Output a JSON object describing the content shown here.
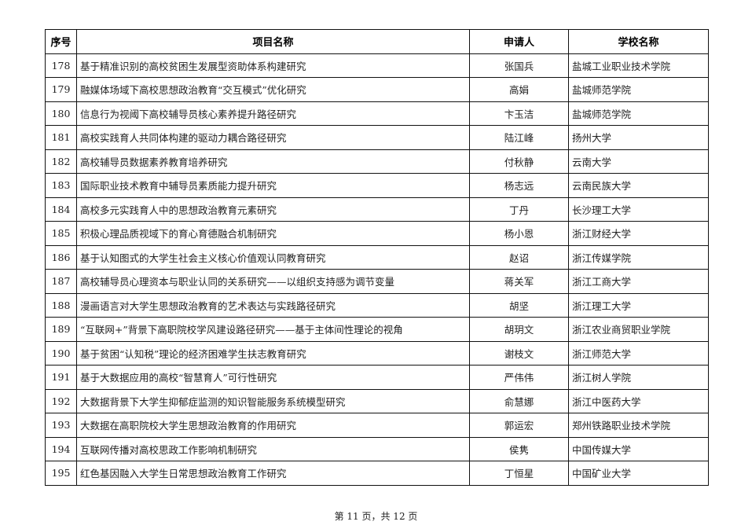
{
  "table": {
    "headers": [
      "序号",
      "项目名称",
      "申请人",
      "学校名称"
    ],
    "rows": [
      [
        "178",
        "基于精准识别的高校贫困生发展型资助体系构建研究",
        "张国兵",
        "盐城工业职业技术学院"
      ],
      [
        "179",
        "融媒体场域下高校思想政治教育“交互模式”优化研究",
        "高娟",
        "盐城师范学院"
      ],
      [
        "180",
        "信息行为视阈下高校辅导员核心素养提升路径研究",
        "卞玉洁",
        "盐城师范学院"
      ],
      [
        "181",
        "高校实践育人共同体构建的驱动力耦合路径研究",
        "陆江峰",
        "扬州大学"
      ],
      [
        "182",
        "高校辅导员数据素养教育培养研究",
        "付秋静",
        "云南大学"
      ],
      [
        "183",
        "国际职业技术教育中辅导员素质能力提升研究",
        "杨志远",
        "云南民族大学"
      ],
      [
        "184",
        "高校多元实践育人中的思想政治教育元素研究",
        "丁丹",
        "长沙理工大学"
      ],
      [
        "185",
        "积极心理品质视域下的育心育德融合机制研究",
        "杨小恩",
        "浙江财经大学"
      ],
      [
        "186",
        "基于认知图式的大学生社会主义核心价值观认同教育研究",
        "赵诏",
        "浙江传媒学院"
      ],
      [
        "187",
        "高校辅导员心理资本与职业认同的关系研究——以组织支持感为调节变量",
        "蒋关军",
        "浙江工商大学"
      ],
      [
        "188",
        "漫画语言对大学生思想政治教育的艺术表达与实践路径研究",
        "胡坚",
        "浙江理工大学"
      ],
      [
        "189",
        "“互联网+”背景下高职院校学风建设路径研究——基于主体间性理论的视角",
        "胡玥文",
        "浙江农业商贸职业学院"
      ],
      [
        "190",
        "基于贫困“认知税”理论的经济困难学生扶志教育研究",
        "谢枝文",
        "浙江师范大学"
      ],
      [
        "191",
        "基于大数据应用的高校“智慧育人”可行性研究",
        "严伟伟",
        "浙江树人学院"
      ],
      [
        "192",
        "大数据背景下大学生抑郁症监测的知识智能服务系统模型研究",
        "俞慧娜",
        "浙江中医药大学"
      ],
      [
        "193",
        "大数据在高职院校大学生思想政治教育的作用研究",
        "郭运宏",
        "郑州铁路职业技术学院"
      ],
      [
        "194",
        "互联网传播对高校思政工作影响机制研究",
        "侯隽",
        "中国传媒大学"
      ],
      [
        "195",
        "红色基因融入大学生日常思想政治教育工作研究",
        "丁恒星",
        "中国矿业大学"
      ]
    ]
  },
  "footer": {
    "page_label": "第 11 页，共 12 页"
  }
}
